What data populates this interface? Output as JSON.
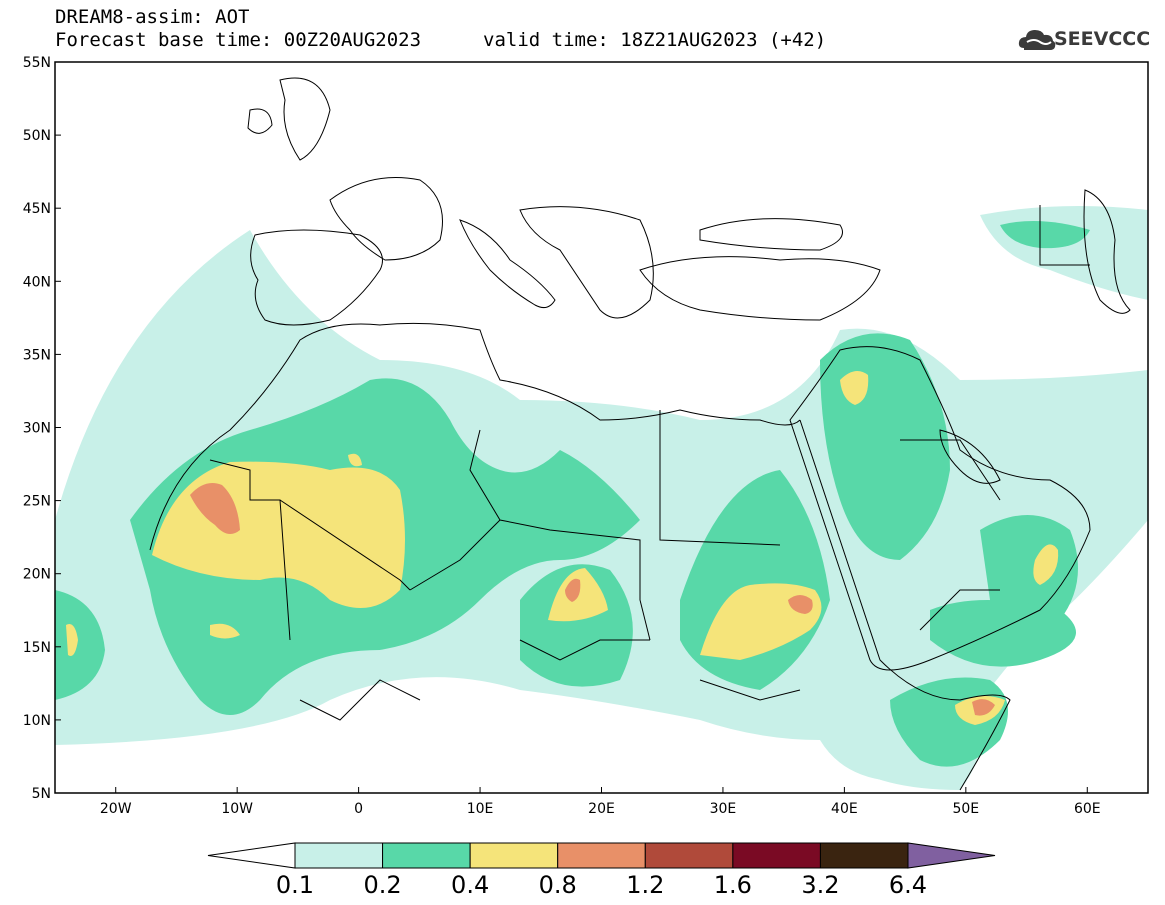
{
  "header": {
    "title": "DREAM8-assim: AOT",
    "base_time": "Forecast base time: 00Z20AUG2023",
    "valid_time": "valid time: 18Z21AUG2023 (+42)"
  },
  "logo": {
    "text": "SEEVCCC",
    "icon": "cloud-icon"
  },
  "map": {
    "lat_labels": [
      "55N",
      "50N",
      "45N",
      "40N",
      "35N",
      "30N",
      "25N",
      "20N",
      "15N",
      "10N",
      "5N"
    ],
    "lon_labels": [
      "20W",
      "10W",
      "0",
      "10E",
      "20E",
      "30E",
      "40E",
      "50E",
      "60E"
    ]
  },
  "colorbar": {
    "labels": [
      "0.1",
      "0.2",
      "0.4",
      "0.8",
      "1.2",
      "1.6",
      "3.2",
      "6.4"
    ],
    "colors": [
      "#ffffff",
      "#c8f0e8",
      "#58d8a8",
      "#f5e47a",
      "#e89068",
      "#b04a3a",
      "#7a0a24",
      "#3a2410",
      "#8060a0"
    ]
  }
}
